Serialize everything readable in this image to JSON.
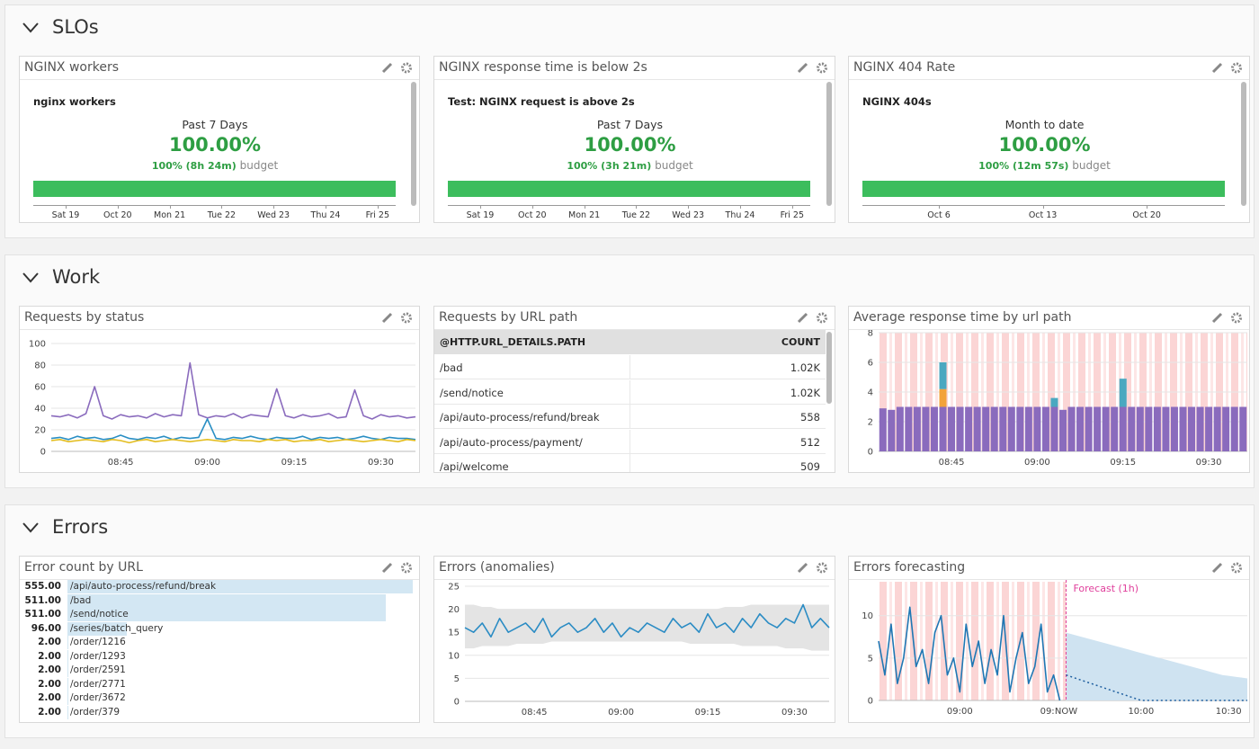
{
  "sections": [
    {
      "title": "SLOs",
      "widgets": [
        {
          "type": "slo",
          "title": "NGINX workers",
          "name": "nginx workers",
          "period": "Past 7 Days",
          "value": "100.00%",
          "budget": "100% (8h 24m)",
          "budget_text": "budget",
          "ticks": [
            "Sat 19",
            "Oct 20",
            "Mon 21",
            "Tue 22",
            "Wed 23",
            "Thu 24",
            "Fri 25"
          ]
        },
        {
          "type": "slo",
          "title": "NGINX response time is below 2s",
          "name": "Test: NGINX request is above 2s",
          "period": "Past 7 Days",
          "value": "100.00%",
          "budget": "100% (3h 21m)",
          "budget_text": "budget",
          "ticks": [
            "Sat 19",
            "Oct 20",
            "Mon 21",
            "Tue 22",
            "Wed 23",
            "Thu 24",
            "Fri 25"
          ]
        },
        {
          "type": "slo",
          "title": "NGINX 404 Rate",
          "name": "NGINX 404s",
          "period": "Month to date",
          "value": "100.00%",
          "budget": "100% (12m 57s)",
          "budget_text": "budget",
          "ticks": [
            "Oct 6",
            "Oct 13",
            "Oct 20"
          ]
        }
      ]
    },
    {
      "title": "Work",
      "widgets": [
        {
          "type": "line",
          "title": "Requests by status",
          "ylim": [
            0,
            100
          ],
          "yticks": [
            0,
            20,
            40,
            60,
            80,
            100
          ],
          "grid": true,
          "categories": [
            null,
            null,
            null,
            null,
            null,
            null,
            null,
            null,
            "08:45",
            null,
            null,
            null,
            null,
            null,
            null,
            null,
            null,
            null,
            "09:00",
            null,
            null,
            null,
            null,
            null,
            null,
            null,
            null,
            null,
            "09:15",
            null,
            null,
            null,
            null,
            null,
            null,
            null,
            null,
            null,
            "09:30",
            null,
            null,
            null,
            null
          ],
          "series": [
            {
              "color": "#8a6bbd",
              "values": [
                33,
                32,
                34,
                31,
                35,
                60,
                33,
                30,
                34,
                32,
                33,
                31,
                35,
                32,
                34,
                33,
                82,
                34,
                31,
                33,
                32,
                35,
                31,
                34,
                33,
                32,
                58,
                33,
                31,
                34,
                32,
                33,
                35,
                31,
                32,
                57,
                33,
                30,
                34,
                32,
                33,
                31,
                32
              ]
            },
            {
              "color": "#2a8fc4",
              "values": [
                12,
                13,
                11,
                14,
                12,
                13,
                11,
                12,
                15,
                12,
                11,
                13,
                12,
                14,
                11,
                13,
                12,
                13,
                30,
                12,
                11,
                13,
                12,
                14,
                12,
                11,
                13,
                12,
                12,
                14,
                11,
                13,
                12,
                13,
                11,
                12,
                14,
                12,
                11,
                13,
                12,
                12,
                11
              ]
            },
            {
              "color": "#e3bd1f",
              "values": [
                10,
                11,
                9,
                10,
                11,
                10,
                9,
                11,
                10,
                8,
                10,
                11,
                9,
                10,
                11,
                10,
                9,
                10,
                11,
                10,
                9,
                11,
                10,
                10,
                9,
                11,
                10,
                11,
                9,
                10,
                10,
                11,
                9,
                10,
                11,
                10,
                9,
                10,
                11,
                10,
                9,
                11,
                10
              ]
            }
          ]
        },
        {
          "type": "table",
          "title": "Requests by URL path",
          "header": [
            "@HTTP.URL_DETAILS.PATH",
            "COUNT"
          ],
          "rows": [
            [
              "/bad",
              "1.02K"
            ],
            [
              "/send/notice",
              "1.02K"
            ],
            [
              "/api/auto-process/refund/break",
              558
            ],
            [
              "/api/auto-process/payment/",
              512
            ],
            [
              "/api/welcome",
              509
            ]
          ]
        },
        {
          "type": "bar",
          "title": "Average response time by url path",
          "ylim": [
            0,
            8
          ],
          "yticks": [
            0,
            2,
            4,
            6,
            8
          ],
          "grid": true,
          "categories": [
            null,
            null,
            null,
            null,
            null,
            null,
            null,
            null,
            "08:45",
            null,
            null,
            null,
            null,
            null,
            null,
            null,
            null,
            null,
            "09:00",
            null,
            null,
            null,
            null,
            null,
            null,
            null,
            null,
            null,
            "09:15",
            null,
            null,
            null,
            null,
            null,
            null,
            null,
            null,
            null,
            "09:30",
            null,
            null,
            null,
            null
          ],
          "series": [
            {
              "color": "#8a6bbd",
              "values": [
                2.9,
                2.8,
                3,
                3,
                3,
                3,
                3,
                3,
                3,
                3,
                3,
                3,
                3,
                3,
                3,
                3,
                3,
                3,
                3,
                3,
                3,
                2.8,
                3,
                3,
                3,
                3,
                3,
                3,
                3,
                3,
                3,
                3,
                3,
                3,
                3,
                3,
                3,
                3,
                3,
                3,
                3,
                3,
                3
              ]
            },
            {
              "color": "#f2a33a",
              "values": [
                0,
                0,
                0,
                0,
                0,
                0,
                0,
                1.2,
                0,
                0,
                0,
                0,
                0,
                0,
                0,
                0,
                0,
                0,
                0,
                0,
                0,
                0,
                0,
                0,
                0,
                0,
                0,
                0,
                0,
                0,
                0,
                0,
                0,
                0,
                0,
                0,
                0,
                0,
                0,
                0,
                0,
                0,
                0
              ]
            },
            {
              "color": "#4aa8c0",
              "values": [
                0,
                0,
                0,
                0,
                0,
                0,
                0,
                1.8,
                0,
                0,
                0,
                0,
                0,
                0,
                0,
                0,
                0,
                0,
                0,
                0,
                0.6,
                0,
                0,
                0,
                0,
                0,
                0,
                0,
                1.9,
                0,
                0,
                0,
                0,
                0,
                0,
                0,
                0,
                0,
                0,
                0,
                0,
                0,
                0
              ]
            }
          ]
        }
      ]
    },
    {
      "title": "Errors",
      "widgets": [
        {
          "type": "toplist",
          "title": "Error count by URL",
          "color": "#d3e7f3",
          "categories": [
            "/api/auto-process/refund/break",
            "/bad",
            "/send/notice",
            "/series/batch_query",
            "/order/1216",
            "/order/1293",
            "/order/2591",
            "/order/2771",
            "/order/3672",
            "/order/379"
          ],
          "values": [
            555,
            511,
            511,
            96,
            2,
            2,
            2,
            2,
            2,
            2
          ],
          "value_labels": [
            "555.00",
            "511.00",
            "511.00",
            "96.00",
            "2.00",
            "2.00",
            "2.00",
            "2.00",
            "2.00",
            "2.00"
          ]
        },
        {
          "type": "line",
          "title": "Errors (anomalies)",
          "ylim": [
            0,
            25
          ],
          "yticks": [
            0,
            5,
            10,
            15,
            20,
            25
          ],
          "grid": true,
          "band_color": "#e4e4e4",
          "categories": [
            null,
            null,
            null,
            null,
            null,
            null,
            null,
            null,
            "08:45",
            null,
            null,
            null,
            null,
            null,
            null,
            null,
            null,
            null,
            "09:00",
            null,
            null,
            null,
            null,
            null,
            null,
            null,
            null,
            null,
            "09:15",
            null,
            null,
            null,
            null,
            null,
            null,
            null,
            null,
            null,
            "09:30",
            null,
            null,
            null,
            null
          ],
          "band_upper": [
            21,
            21,
            20.5,
            20.5,
            20,
            20,
            20,
            20,
            20,
            20,
            20,
            20,
            20,
            20,
            20,
            20,
            20,
            20,
            20,
            20,
            20,
            20,
            20,
            20,
            20,
            20,
            20,
            20,
            20,
            20,
            20.5,
            20.5,
            20.5,
            21,
            21,
            21,
            21,
            21,
            21,
            21,
            21,
            21,
            21
          ],
          "band_lower": [
            11.5,
            11.5,
            12,
            12,
            12,
            12,
            12.5,
            12.5,
            12.5,
            12.5,
            13,
            13,
            13,
            13,
            13,
            13,
            13,
            13,
            13,
            13,
            13,
            13,
            13,
            13,
            13,
            13,
            12.5,
            12.5,
            12.5,
            12.5,
            12.5,
            12.5,
            12,
            12,
            12,
            12,
            12,
            11.5,
            11.5,
            11.5,
            11,
            11,
            11
          ],
          "series": [
            {
              "color": "#2b8cc4",
              "values": [
                16,
                15,
                17,
                14,
                18,
                15,
                16,
                17,
                15,
                18,
                14,
                16,
                17,
                15,
                16,
                18,
                15,
                17,
                14,
                16,
                15,
                17,
                16,
                15,
                18,
                16,
                17,
                15,
                19,
                16,
                17,
                15,
                18,
                16,
                19,
                17,
                16,
                18,
                17,
                21,
                16,
                18,
                16
              ]
            }
          ]
        },
        {
          "type": "line",
          "title": "Errors forecasting",
          "ylim": [
            0,
            14
          ],
          "yticks": [
            0,
            5,
            10
          ],
          "grid": true,
          "band_color": "#cfe3f1",
          "annotation": "Forecast (1h)",
          "annotation_color": "#e0409c",
          "categories": [
            null,
            null,
            null,
            null,
            null,
            null,
            null,
            null,
            null,
            null,
            null,
            null,
            null,
            "09:00",
            null,
            null,
            null,
            null,
            null,
            null,
            null,
            null,
            null,
            null,
            null,
            null,
            null,
            "09:",
            null,
            null,
            "NOW",
            null,
            null,
            null,
            null,
            null,
            null,
            null,
            null,
            null,
            null,
            null,
            "10:00",
            null,
            null,
            null,
            null,
            null,
            null,
            null,
            null,
            null,
            null,
            null,
            null,
            null,
            "10:30",
            null,
            null,
            null
          ],
          "band_upper": [
            null,
            null,
            null,
            null,
            null,
            null,
            null,
            null,
            null,
            null,
            null,
            null,
            null,
            null,
            null,
            null,
            null,
            null,
            null,
            null,
            null,
            null,
            null,
            null,
            null,
            null,
            null,
            null,
            null,
            null,
            8,
            7.8,
            7.6,
            7.4,
            7.2,
            7,
            6.8,
            6.6,
            6.4,
            6.2,
            6,
            5.8,
            5.6,
            5.4,
            5.2,
            5,
            4.8,
            4.6,
            4.4,
            4.2,
            4,
            3.8,
            3.6,
            3.4,
            3.2,
            3,
            2.9,
            2.8,
            2.7,
            2.6
          ],
          "series": [
            {
              "color": "#1f77b4",
              "values": [
                7,
                3,
                9,
                2,
                5,
                11,
                4,
                6,
                2,
                8,
                10,
                3,
                5,
                1,
                9,
                4,
                7,
                2,
                6,
                3,
                10,
                1,
                5,
                8,
                2,
                4,
                9,
                1,
                3,
                0,
                null,
                null,
                null,
                null,
                null,
                null,
                null,
                null,
                null,
                null,
                null,
                null,
                null,
                null,
                null,
                null,
                null,
                null,
                null,
                null,
                null,
                null,
                null,
                null,
                null,
                null,
                null,
                null,
                null,
                null
              ]
            },
            {
              "color": "#1f5f9f",
              "style": "dotted",
              "values": [
                null,
                null,
                null,
                null,
                null,
                null,
                null,
                null,
                null,
                null,
                null,
                null,
                null,
                null,
                null,
                null,
                null,
                null,
                null,
                null,
                null,
                null,
                null,
                null,
                null,
                null,
                null,
                null,
                null,
                null,
                3,
                2.75,
                2.5,
                2.25,
                2,
                1.75,
                1.5,
                1.25,
                1,
                0.75,
                0.5,
                0.25,
                0,
                0,
                0,
                0,
                0,
                0,
                0,
                0,
                0,
                0,
                0,
                0,
                0,
                0,
                0,
                0,
                0,
                0
              ]
            }
          ]
        }
      ]
    }
  ]
}
